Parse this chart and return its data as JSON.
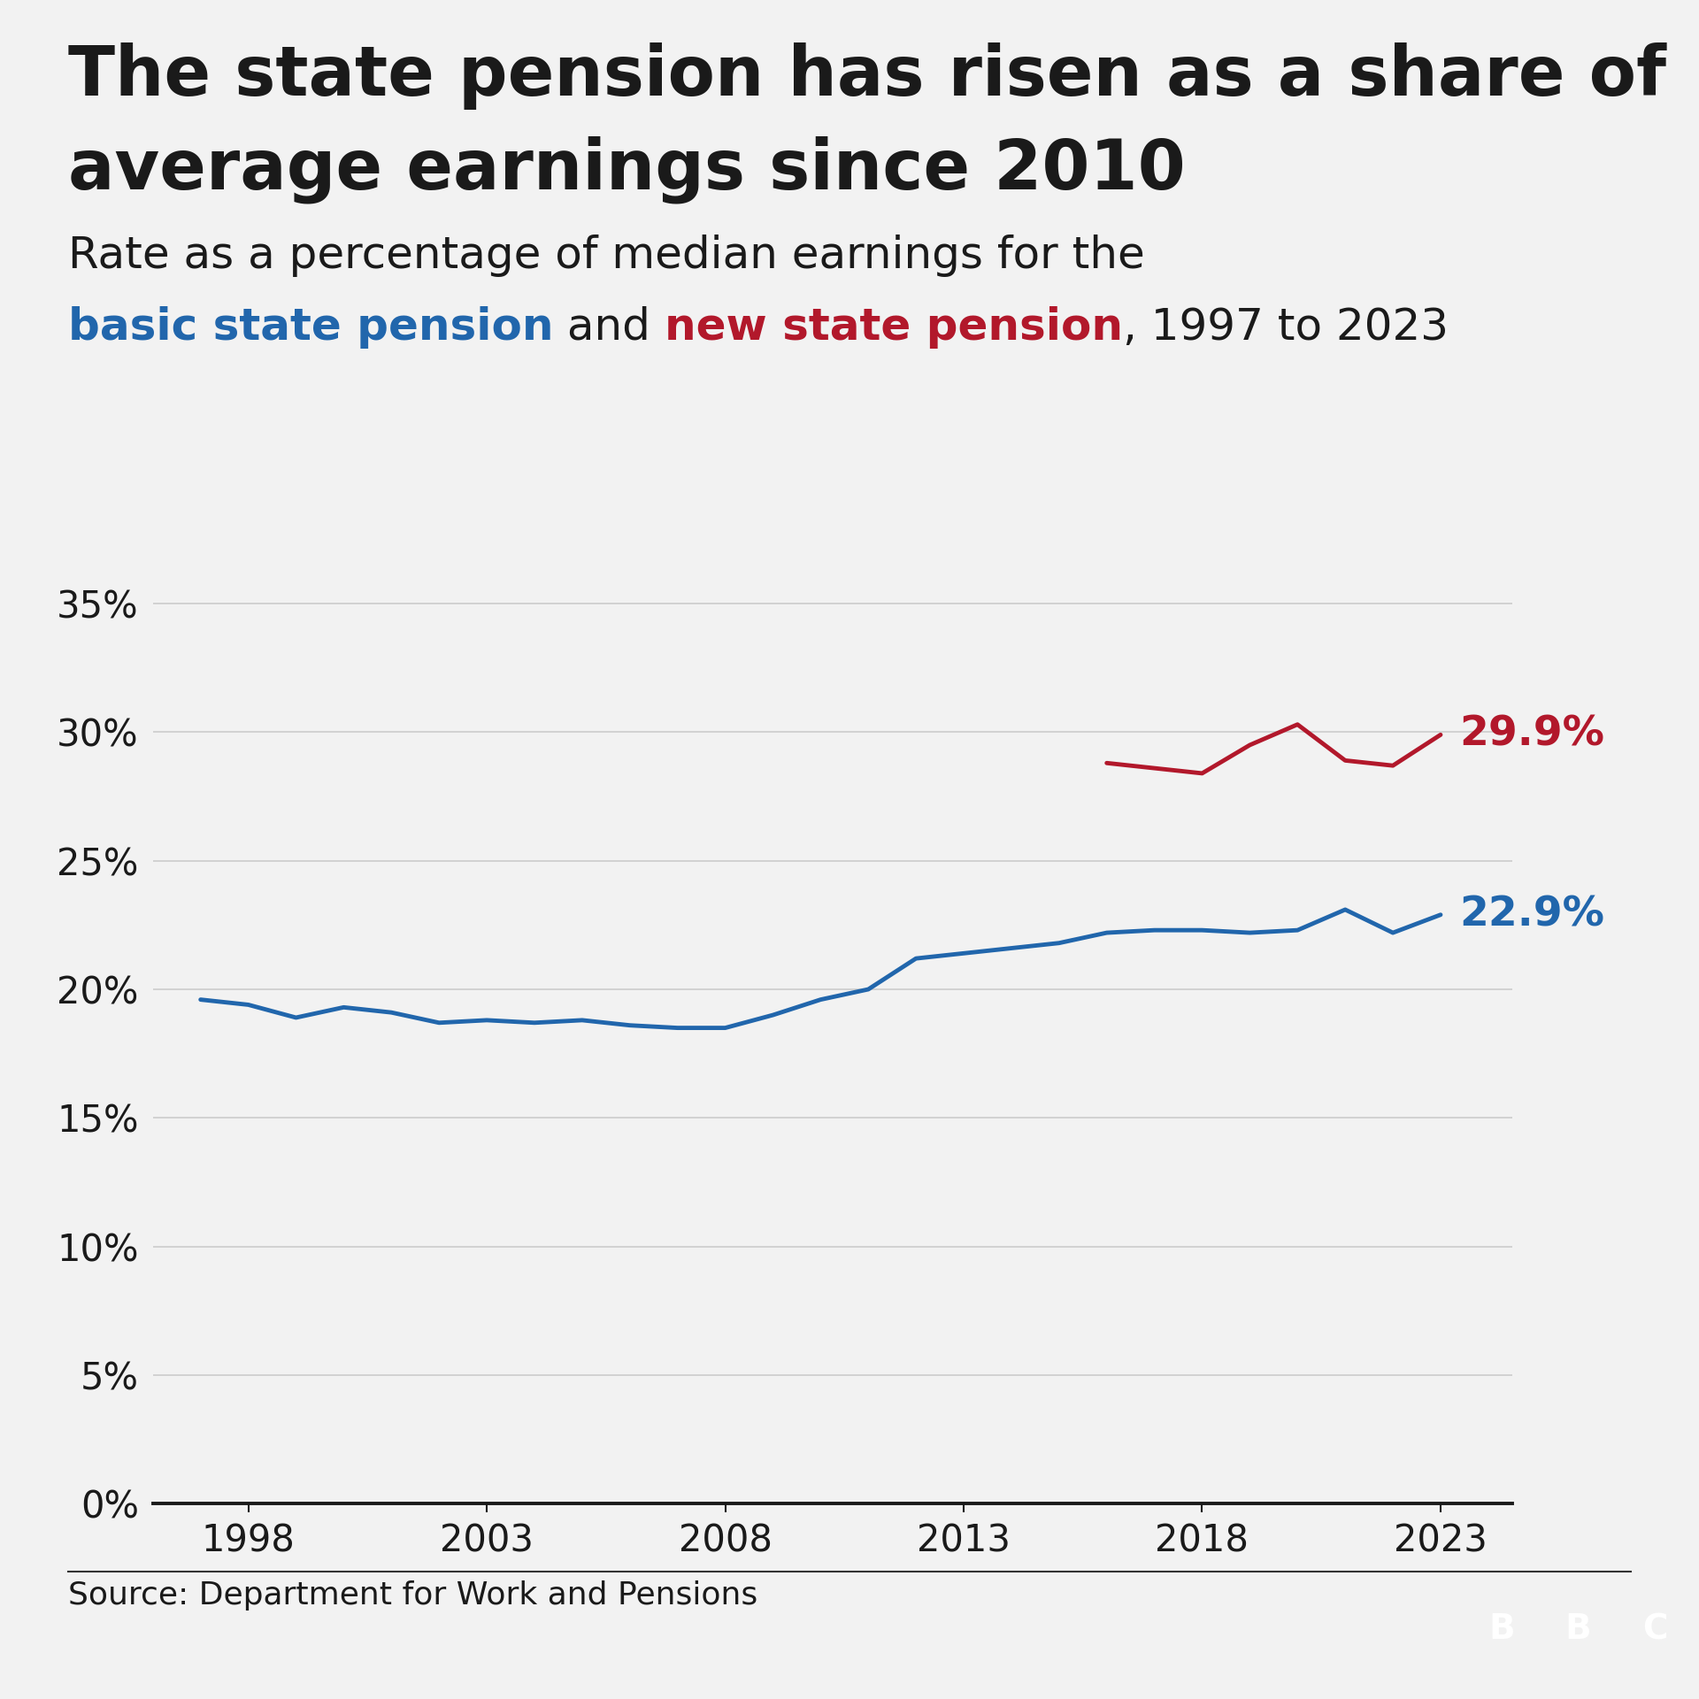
{
  "title_line1": "The state pension has risen as a share of",
  "title_line2": "average earnings since 2010",
  "subtitle_line1": "Rate as a percentage of median earnings for the",
  "subtitle_basic": "basic state pension",
  "subtitle_mid": " and ",
  "subtitle_new": "new state pension",
  "subtitle_end": ", 1997 to 2023",
  "source": "Source: Department for Work and Pensions",
  "background_color": "#f2f2f2",
  "title_color": "#1a1a1a",
  "subtitle_color": "#1a1a1a",
  "basic_color": "#2166ac",
  "new_color": "#b2182b",
  "basic_label": "22.9%",
  "new_label": "29.9%",
  "ylim": [
    0,
    37
  ],
  "yticks": [
    0,
    5,
    10,
    15,
    20,
    25,
    30,
    35
  ],
  "xticks": [
    1998,
    2003,
    2008,
    2013,
    2018,
    2023
  ],
  "basic_years": [
    1997,
    1998,
    1999,
    2000,
    2001,
    2002,
    2003,
    2004,
    2005,
    2006,
    2007,
    2008,
    2009,
    2010,
    2011,
    2012,
    2013,
    2014,
    2015,
    2016,
    2017,
    2018,
    2019,
    2020,
    2021,
    2022,
    2023
  ],
  "basic_values": [
    19.6,
    19.4,
    18.9,
    19.3,
    19.1,
    18.7,
    18.8,
    18.7,
    18.8,
    18.6,
    18.5,
    18.5,
    19.0,
    19.6,
    20.0,
    21.2,
    21.4,
    21.6,
    21.8,
    22.2,
    22.3,
    22.3,
    22.2,
    22.3,
    23.1,
    22.2,
    22.9
  ],
  "new_years": [
    2016,
    2017,
    2018,
    2019,
    2020,
    2021,
    2022,
    2023
  ],
  "new_values": [
    28.8,
    28.6,
    28.4,
    29.5,
    30.3,
    28.9,
    28.7,
    29.9
  ],
  "line_width": 3.5,
  "title_fontsize": 56,
  "subtitle_fontsize": 36,
  "tick_fontsize": 30,
  "label_fontsize": 34,
  "source_fontsize": 26
}
